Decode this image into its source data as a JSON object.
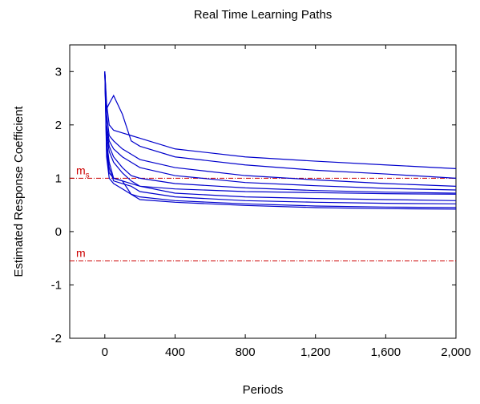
{
  "chart_data": {
    "type": "line",
    "title": "Real Time Learning Paths",
    "x_label": "Periods",
    "y_label": "Estimated Response Coefficient",
    "x": [
      0,
      10,
      25,
      50,
      100,
      150,
      200,
      400,
      800,
      1200,
      1600,
      2000
    ],
    "series": [
      {
        "color": "#0000cc",
        "values": [
          3,
          2.4,
          2.0,
          1.9,
          1.85,
          1.8,
          1.75,
          1.55,
          1.4,
          1.32,
          1.25,
          1.18
        ]
      },
      {
        "color": "#0000cc",
        "values": [
          3,
          2.3,
          2.4,
          2.55,
          2.2,
          1.7,
          1.6,
          1.4,
          1.25,
          1.15,
          1.08,
          1.0
        ]
      },
      {
        "color": "#0000cc",
        "values": [
          3,
          2.2,
          1.8,
          1.7,
          1.55,
          1.45,
          1.35,
          1.2,
          1.05,
          0.97,
          0.9,
          0.85
        ]
      },
      {
        "color": "#0000cc",
        "values": [
          3,
          2.0,
          1.7,
          1.55,
          1.4,
          1.3,
          1.2,
          1.05,
          0.92,
          0.86,
          0.81,
          0.78
        ]
      },
      {
        "color": "#0000cc",
        "values": [
          3,
          1.9,
          1.6,
          1.4,
          1.2,
          1.05,
          1.0,
          0.9,
          0.82,
          0.77,
          0.74,
          0.72
        ]
      },
      {
        "color": "#0000cc",
        "values": [
          3,
          1.8,
          1.5,
          1.3,
          1.1,
          0.95,
          0.85,
          0.8,
          0.75,
          0.73,
          0.71,
          0.7
        ]
      },
      {
        "color": "#0000cc",
        "values": [
          3,
          1.7,
          1.3,
          1.0,
          0.95,
          0.9,
          0.85,
          0.72,
          0.65,
          0.62,
          0.6,
          0.58
        ]
      },
      {
        "color": "#0000cc",
        "values": [
          3,
          1.6,
          1.2,
          0.95,
          0.9,
          0.85,
          0.75,
          0.65,
          0.58,
          0.55,
          0.53,
          0.52
        ]
      },
      {
        "color": "#0000cc",
        "values": [
          3,
          1.5,
          1.1,
          1.0,
          0.95,
          0.7,
          0.65,
          0.58,
          0.52,
          0.48,
          0.46,
          0.45
        ]
      },
      {
        "color": "#0000cc",
        "values": [
          3,
          1.4,
          1.0,
          0.9,
          0.8,
          0.7,
          0.6,
          0.55,
          0.49,
          0.45,
          0.43,
          0.42
        ]
      }
    ],
    "reference_lines": [
      {
        "value": 1,
        "label": "m",
        "label_sub": "s",
        "color": "#cc0000"
      },
      {
        "value": -0.55,
        "label": "m",
        "color": "#cc0000"
      }
    ],
    "xlim": [
      -200,
      2000
    ],
    "xticks": [
      0,
      400,
      800,
      {
        "value": 1200,
        "label": "1,200"
      },
      {
        "value": 1600,
        "label": "1,600"
      },
      {
        "value": 2000,
        "label": "2,000"
      }
    ],
    "ylim": [
      -2,
      3.5
    ],
    "yticks": [
      3,
      2,
      1,
      0,
      -1,
      -2
    ],
    "grid": false
  }
}
